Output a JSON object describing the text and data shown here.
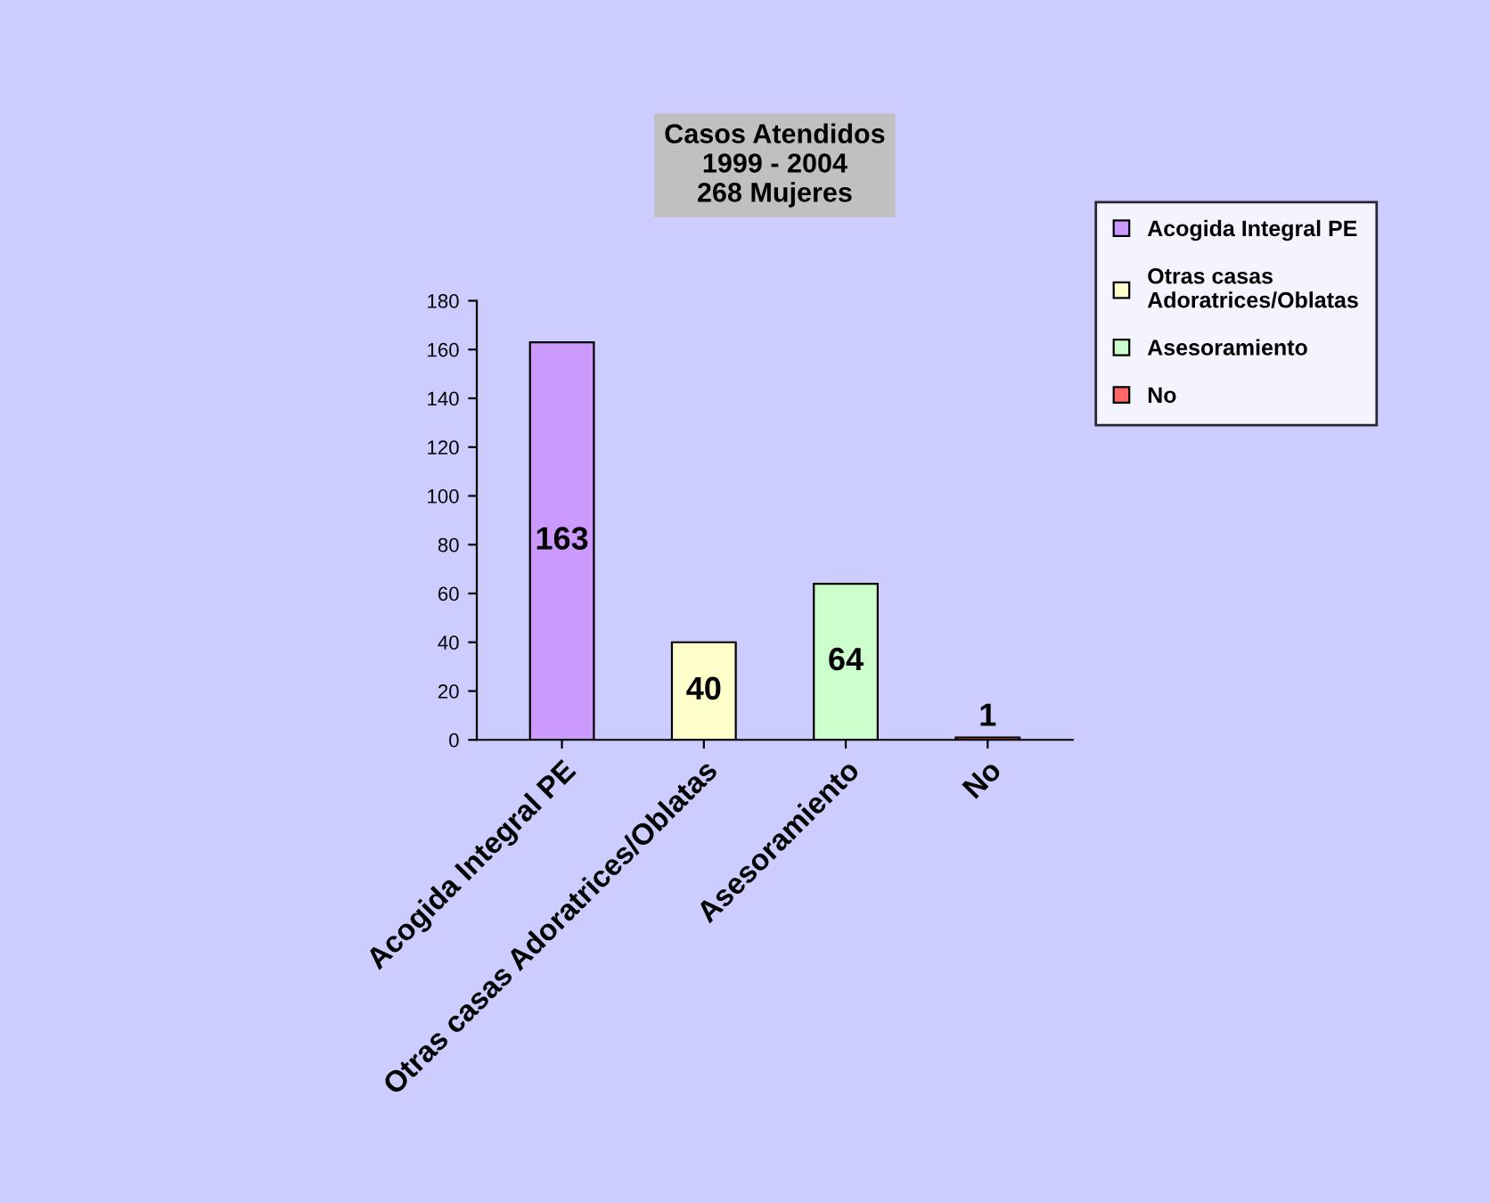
{
  "chart_data": {
    "type": "bar",
    "title": "Casos Atendidos\n1999 - 2004\n268 Mujeres",
    "categories": [
      "Acogida Integral PE",
      "Otras casas Adoratrices/Oblatas",
      "Asesoramiento",
      "No"
    ],
    "stacked": true,
    "series": [
      {
        "name": "Acogida Integral PE",
        "color": "#cc99ff",
        "values": [
          163,
          null,
          null,
          null
        ]
      },
      {
        "name": "Otras casas Adoratrices/Oblatas",
        "color": "#ffffcc",
        "values": [
          null,
          40,
          null,
          null
        ]
      },
      {
        "name": "Asesoramiento",
        "color": "#ccffcc",
        "values": [
          null,
          null,
          64,
          null
        ]
      },
      {
        "name": "No",
        "color": "#ff6666",
        "values": [
          null,
          null,
          null,
          1
        ]
      }
    ],
    "ylim": [
      0,
      180
    ],
    "yticks": [
      0,
      20,
      40,
      60,
      80,
      100,
      120,
      140,
      160,
      180
    ],
    "data_labels": true,
    "grid": false,
    "legend": "right"
  }
}
